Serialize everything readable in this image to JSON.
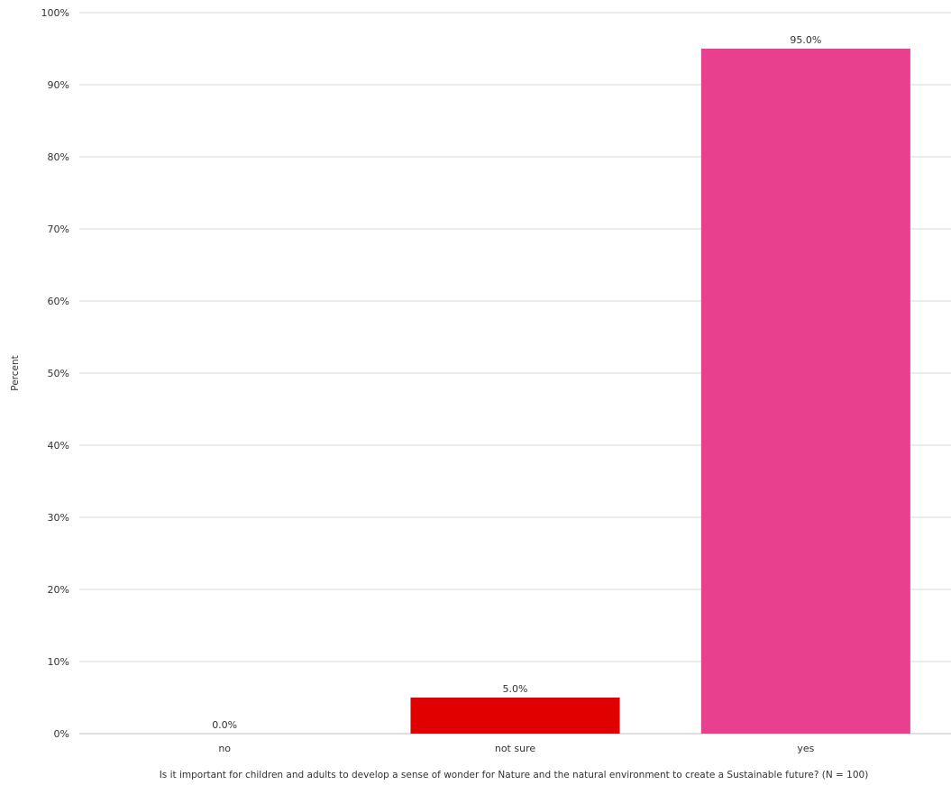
{
  "chart_data": {
    "type": "bar",
    "title": "",
    "xlabel": "Is it important for children and adults to develop a sense of wonder for Nature and the natural environment to create a Sustainable future? (N = 100)",
    "ylabel": "Percent",
    "categories": [
      "no",
      "not sure",
      "yes"
    ],
    "values": [
      0.0,
      5.0,
      95.0
    ],
    "data_labels": [
      "0.0%",
      "5.0%",
      "95.0%"
    ],
    "colors": [
      "#e00000",
      "#e00000",
      "#e8408e"
    ],
    "ylim": [
      0,
      100
    ],
    "yticks": [
      {
        "value": 0,
        "label": "0%"
      },
      {
        "value": 10,
        "label": "10%"
      },
      {
        "value": 20,
        "label": "20%"
      },
      {
        "value": 30,
        "label": "30%"
      },
      {
        "value": 40,
        "label": "40%"
      },
      {
        "value": 50,
        "label": "50%"
      },
      {
        "value": 60,
        "label": "60%"
      },
      {
        "value": 70,
        "label": "70%"
      },
      {
        "value": 80,
        "label": "80%"
      },
      {
        "value": 90,
        "label": "90%"
      },
      {
        "value": 100,
        "label": "100%"
      }
    ],
    "grid": true,
    "legend": "none"
  }
}
